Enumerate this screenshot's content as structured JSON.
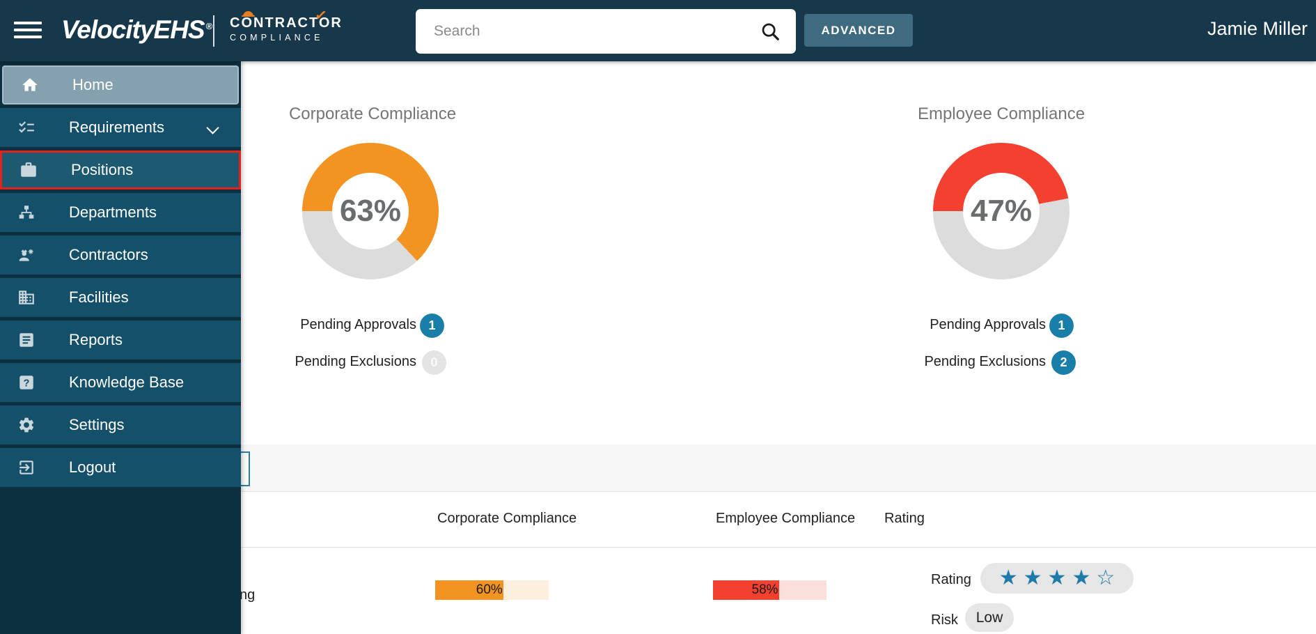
{
  "header": {
    "brand": "VelocityEHS",
    "brand_reg": "®",
    "product_line1": "CONTRACTOR",
    "product_line2": "COMPLIANCE",
    "search_placeholder": "Search",
    "advanced_label": "ADVANCED",
    "user_name": "Jamie Miller"
  },
  "sidebar": {
    "items": [
      {
        "label": "Home",
        "icon": "home-icon",
        "selected": true
      },
      {
        "label": "Requirements",
        "icon": "checklist-icon",
        "has_chevron": true
      },
      {
        "label": "Positions",
        "icon": "briefcase-icon",
        "highlighted": true
      },
      {
        "label": "Departments",
        "icon": "org-chart-icon"
      },
      {
        "label": "Contractors",
        "icon": "contractor-icon"
      },
      {
        "label": "Facilities",
        "icon": "building-icon"
      },
      {
        "label": "Reports",
        "icon": "document-icon"
      },
      {
        "label": "Knowledge Base",
        "icon": "help-icon"
      },
      {
        "label": "Settings",
        "icon": "gear-icon"
      },
      {
        "label": "Logout",
        "icon": "logout-icon"
      }
    ]
  },
  "dashboard": {
    "corporate": {
      "title": "Corporate Compliance",
      "percent": "63%",
      "value": 63,
      "color": "#F39422",
      "pending_approvals_label": "Pending Approvals",
      "pending_approvals_count": "1",
      "pending_exclusions_label": "Pending Exclusions",
      "pending_exclusions_count": "0"
    },
    "employee": {
      "title": "Employee Compliance",
      "percent": "47%",
      "value": 47,
      "color": "#F4402F",
      "pending_approvals_label": "Pending Approvals",
      "pending_approvals_count": "1",
      "pending_exclusions_label": "Pending Exclusions",
      "pending_exclusions_count": "2"
    }
  },
  "table": {
    "headers": {
      "corporate": "Corporate Compliance",
      "employee": "Employee Compliance",
      "rating": "Rating"
    },
    "row": {
      "name_fragment": "ng",
      "corporate_bar": {
        "value": 60,
        "label": "60%",
        "color": "#F39422",
        "track": "#FCEFDE"
      },
      "employee_bar": {
        "value": 58,
        "label": "58%",
        "color": "#F4402F",
        "track": "#FBDFDB"
      },
      "rating_label": "Rating",
      "rating_stars": 4,
      "rating_max": 5,
      "risk_label": "Risk",
      "risk_value": "Low"
    }
  },
  "colors": {
    "topbar": "#17374A",
    "sidebar_item": "#15506B",
    "sidebar_selected": "#85A1AF",
    "highlight_border_red": "#E3211B",
    "badge_teal": "#1A7FA8",
    "badge_gray": "#E4E4E4",
    "donut_track": "#DCDCDC",
    "star_blue": "#1E7AA8",
    "advanced_bg": "#3E6B80",
    "logo_accent_orange": "#E87E24"
  }
}
